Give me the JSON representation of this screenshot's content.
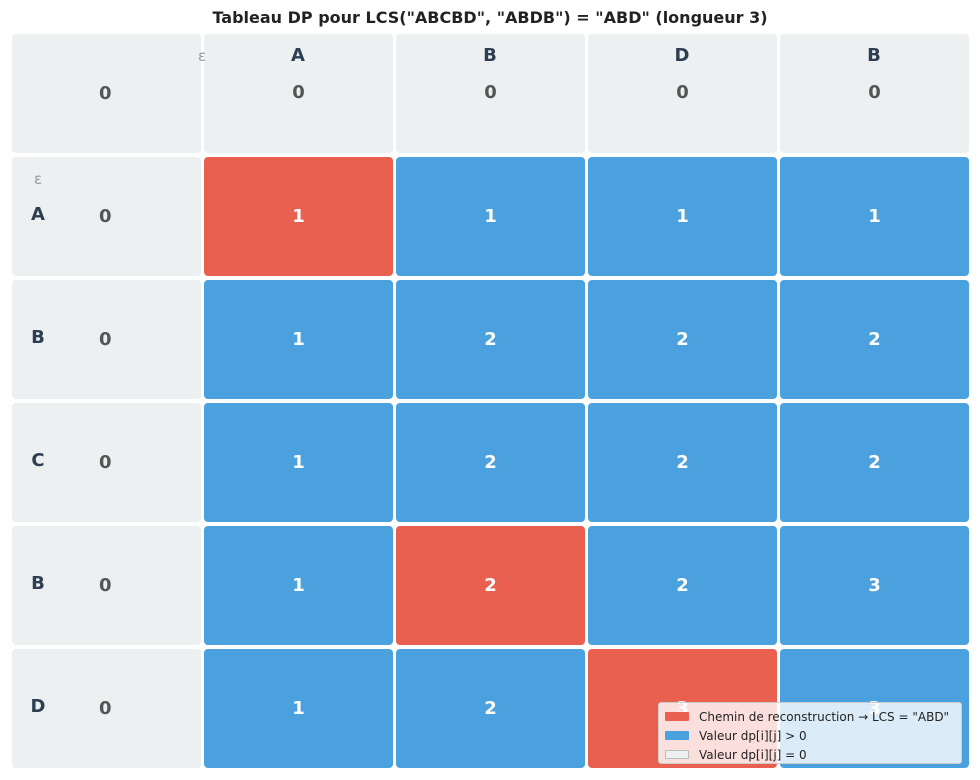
{
  "title": "Tableau DP pour LCS(\"ABCBD\", \"ABDB\") = \"ABD\" (longueur 3)",
  "col_epsilon": "ε",
  "row_epsilon": "ε",
  "col_headers": [
    "A",
    "B",
    "D",
    "B"
  ],
  "row_headers": [
    "A",
    "B",
    "C",
    "B",
    "D"
  ],
  "chart_data": {
    "type": "heatmap",
    "string_rows": "ABCBD",
    "string_cols": "ABDB",
    "lcs": "ABD",
    "lcs_length": 3,
    "values": [
      [
        0,
        0,
        0,
        0,
        0
      ],
      [
        0,
        1,
        1,
        1,
        1
      ],
      [
        0,
        1,
        2,
        2,
        2
      ],
      [
        0,
        1,
        2,
        2,
        2
      ],
      [
        0,
        1,
        2,
        2,
        3
      ],
      [
        0,
        1,
        2,
        3,
        3
      ]
    ],
    "reconstruction_path": [
      [
        1,
        1
      ],
      [
        4,
        2
      ],
      [
        5,
        3
      ]
    ],
    "colors": {
      "path": "#e96050",
      "positive": "#4aa1dd",
      "zero": "#ecf0f1"
    }
  },
  "legend": {
    "items": [
      {
        "label": "Chemin de reconstruction → LCS = \"ABD\"",
        "color": "#e96050"
      },
      {
        "label": "Valeur dp[i][j] > 0",
        "color": "#4aa1dd"
      },
      {
        "label": "Valeur dp[i][j] = 0",
        "color": "#ecf0f1"
      }
    ],
    "placement": "bottom-right"
  }
}
